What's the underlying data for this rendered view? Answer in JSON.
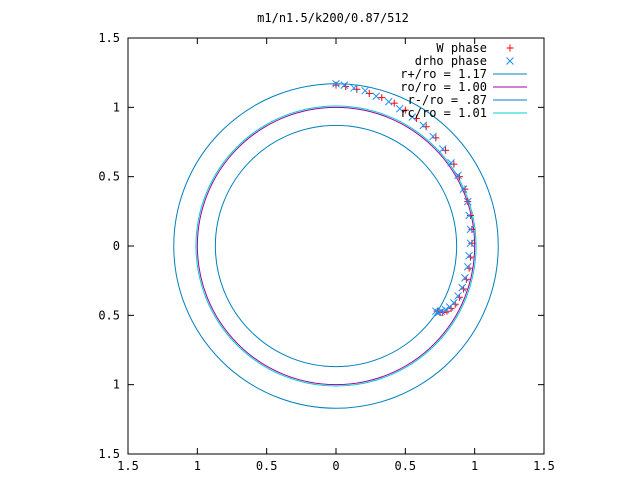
{
  "chart_data": {
    "type": "scatter",
    "title": "m1/n1.5/k200/0.87/512",
    "xlabel": "",
    "ylabel": "",
    "xlim": [
      -1.5,
      1.5
    ],
    "ylim": [
      -1.5,
      1.5
    ],
    "x_ticks": [
      -1.5,
      -1,
      -0.5,
      0,
      0.5,
      1,
      1.5
    ],
    "y_ticks": [
      -1.5,
      -1,
      -0.5,
      0,
      0.5,
      1,
      1.5
    ],
    "x_tick_labels": [
      "1.5",
      "1",
      "0.5",
      "0",
      "0.5",
      "1",
      "1.5"
    ],
    "y_tick_labels": [
      "1.5",
      "1",
      "0.5",
      "0",
      "0.5",
      "1",
      "1.5"
    ],
    "grid": false,
    "legend_position": "top-right",
    "colors": {
      "w_phase": "#ff0000",
      "drho_phase": "#1e90ff",
      "r_plus": "#0080c0",
      "r_o": "#a000a0",
      "r_minus": "#0080c0",
      "r_c": "#00d0d0"
    },
    "series": [
      {
        "name": "W phase",
        "kind": "points",
        "marker": "+",
        "x": [
          0.0,
          0.07,
          0.15,
          0.24,
          0.33,
          0.42,
          0.5,
          0.58,
          0.65,
          0.72,
          0.79,
          0.85,
          0.89,
          0.93,
          0.95,
          0.97,
          0.98,
          0.98,
          0.97,
          0.96,
          0.94,
          0.92,
          0.89,
          0.86,
          0.83,
          0.8,
          0.77,
          0.75,
          0.73
        ],
        "y": [
          1.16,
          1.15,
          1.13,
          1.1,
          1.07,
          1.03,
          0.98,
          0.92,
          0.86,
          0.78,
          0.69,
          0.59,
          0.5,
          0.41,
          0.32,
          0.22,
          0.12,
          0.02,
          -0.08,
          -0.16,
          -0.24,
          -0.31,
          -0.37,
          -0.42,
          -0.45,
          -0.47,
          -0.48,
          -0.48,
          -0.47
        ]
      },
      {
        "name": "drho phase",
        "kind": "points",
        "marker": "x",
        "x": [
          0.0,
          0.06,
          0.13,
          0.21,
          0.29,
          0.38,
          0.46,
          0.55,
          0.63,
          0.7,
          0.77,
          0.83,
          0.88,
          0.92,
          0.95,
          0.96,
          0.97,
          0.97,
          0.96,
          0.95,
          0.93,
          0.91,
          0.88,
          0.85,
          0.82,
          0.79,
          0.76,
          0.74,
          0.72
        ],
        "y": [
          1.17,
          1.16,
          1.14,
          1.12,
          1.08,
          1.04,
          0.99,
          0.93,
          0.87,
          0.79,
          0.7,
          0.6,
          0.51,
          0.41,
          0.32,
          0.22,
          0.12,
          0.02,
          -0.07,
          -0.15,
          -0.23,
          -0.3,
          -0.36,
          -0.41,
          -0.44,
          -0.46,
          -0.47,
          -0.48,
          -0.47
        ]
      },
      {
        "name": "r+/ro = 1.17",
        "kind": "circle",
        "radius": 1.17
      },
      {
        "name": "ro/ro = 1.00",
        "kind": "circle",
        "radius": 1.0
      },
      {
        "name": "r-/ro = .87",
        "kind": "circle",
        "radius": 0.87
      },
      {
        "name": "rc/ro = 1.01",
        "kind": "circle",
        "radius": 1.01
      }
    ]
  }
}
